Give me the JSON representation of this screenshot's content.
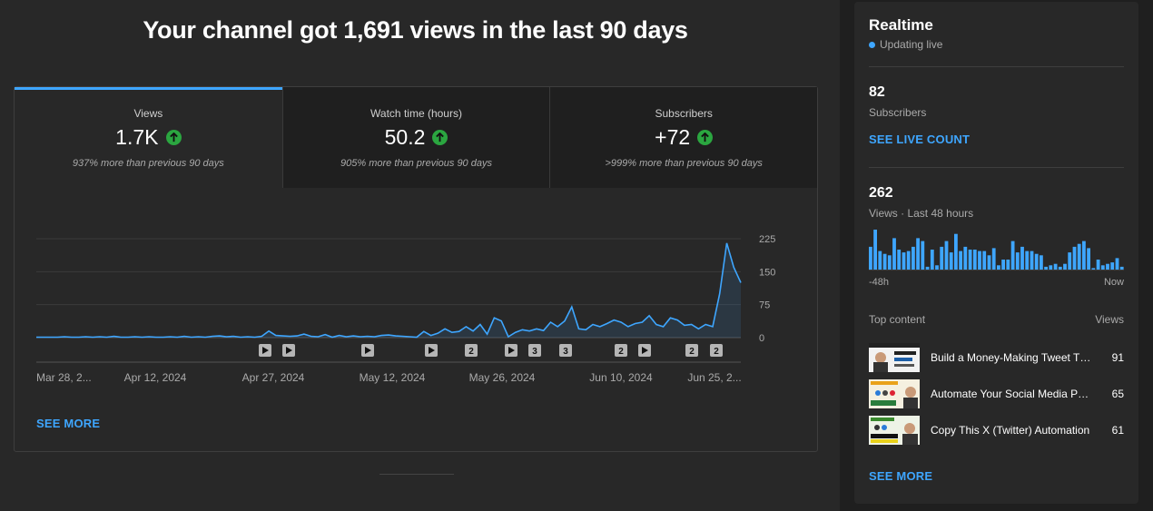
{
  "headline": "Your channel got 1,691 views in the last 90 days",
  "tabs": [
    {
      "label": "Views",
      "value": "1.7K",
      "sub": "937% more than previous 90 days"
    },
    {
      "label": "Watch time (hours)",
      "value": "50.2",
      "sub": "905% more than previous 90 days"
    },
    {
      "label": "Subscribers",
      "value": "+72",
      "sub": ">999% more than previous 90 days"
    }
  ],
  "see_more": "SEE MORE",
  "chart_data": {
    "type": "area",
    "y_ticks": [
      "225",
      "150",
      "75",
      "0"
    ],
    "ylim": [
      0,
      225
    ],
    "x_tick_labels": [
      "Mar 28, 2...",
      "Apr 12, 2024",
      "Apr 27, 2024",
      "May 12, 2024",
      "May 26, 2024",
      "Jun 10, 2024",
      "Jun 25, 2..."
    ],
    "values": [
      1,
      1,
      1,
      1,
      2,
      1,
      1,
      2,
      1,
      2,
      1,
      3,
      1,
      1,
      2,
      1,
      2,
      1,
      1,
      2,
      1,
      3,
      1,
      2,
      1,
      3,
      4,
      2,
      3,
      1,
      2,
      1,
      3,
      15,
      5,
      4,
      3,
      4,
      8,
      3,
      2,
      7,
      1,
      5,
      2,
      4,
      2,
      3,
      2,
      5,
      6,
      4,
      3,
      2,
      1,
      14,
      5,
      10,
      20,
      12,
      14,
      25,
      15,
      30,
      8,
      45,
      38,
      2,
      12,
      18,
      15,
      20,
      16,
      35,
      25,
      38,
      70,
      20,
      18,
      30,
      25,
      32,
      40,
      35,
      25,
      32,
      35,
      50,
      30,
      25,
      45,
      40,
      28,
      30,
      20,
      30,
      25,
      100,
      215,
      160,
      125
    ],
    "markers": [
      "▶",
      "▶",
      "▶",
      "▶",
      "2",
      "▶",
      "3",
      "3",
      "2",
      "▶",
      "2",
      "2"
    ]
  },
  "realtime": {
    "title": "Realtime",
    "live": "Updating live",
    "subs_value": "82",
    "subs_label": "Subscribers",
    "live_count": "SEE LIVE COUNT",
    "views_value": "262",
    "views_label": "Views · Last 48 hours",
    "axis_left": "-48h",
    "axis_right": "Now",
    "top_content": "Top content",
    "views_col": "Views",
    "mini_chart_values": [
      16,
      28,
      13,
      11,
      10,
      22,
      14,
      12,
      13,
      16,
      22,
      20,
      2,
      14,
      3,
      16,
      20,
      12,
      25,
      13,
      16,
      14,
      14,
      13,
      13,
      10,
      15,
      3,
      7,
      7,
      20,
      12,
      16,
      13,
      13,
      11,
      10,
      2,
      3,
      4,
      2,
      4,
      12,
      16,
      18,
      20,
      15,
      1,
      7,
      3,
      4,
      5,
      8,
      2
    ],
    "items": [
      {
        "title": "Build a Money-Making Tweet Thread",
        "views": "91"
      },
      {
        "title": "Automate Your Social Media Posts",
        "views": "65"
      },
      {
        "title": "Copy This X (Twitter) Automation",
        "views": "61"
      }
    ],
    "see_more": "SEE MORE"
  }
}
